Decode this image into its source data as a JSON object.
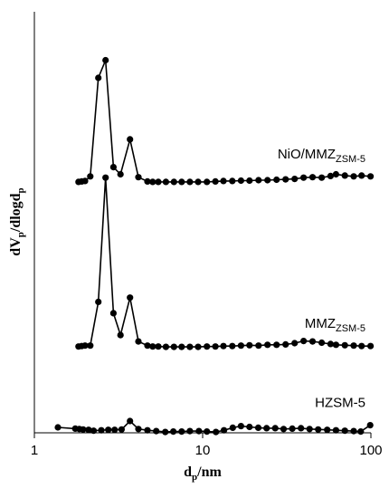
{
  "chart_data": {
    "type": "line",
    "xlabel": {
      "main": "d",
      "sub": "p",
      "rest": "/nm"
    },
    "ylabel": {
      "p1": "dV",
      "s1": "p",
      "p2": "/dlogd",
      "s2": "p"
    },
    "x_scale": "log",
    "xlim": [
      1,
      100
    ],
    "ylim": [
      0,
      1
    ],
    "x_ticks": [
      1,
      10,
      100
    ],
    "x_tick_labels": [
      "1",
      "10",
      "100"
    ],
    "grid": false,
    "legend": "none",
    "series": [
      {
        "label_main": "NiO/MMZ",
        "label_sub": "ZSM-5",
        "points": [
          [
            1.83,
            0.596
          ],
          [
            1.91,
            0.597
          ],
          [
            2.0,
            0.598
          ],
          [
            2.15,
            0.609
          ],
          [
            2.4,
            0.843
          ],
          [
            2.65,
            0.885
          ],
          [
            2.95,
            0.631
          ],
          [
            3.25,
            0.614
          ],
          [
            3.7,
            0.697
          ],
          [
            4.15,
            0.607
          ],
          [
            4.7,
            0.597
          ],
          [
            5.05,
            0.596
          ],
          [
            5.45,
            0.596
          ],
          [
            6.05,
            0.596
          ],
          [
            6.75,
            0.596
          ],
          [
            7.5,
            0.596
          ],
          [
            8.4,
            0.596
          ],
          [
            9.4,
            0.596
          ],
          [
            10.6,
            0.596
          ],
          [
            11.9,
            0.597
          ],
          [
            13.3,
            0.598
          ],
          [
            15.0,
            0.598
          ],
          [
            16.9,
            0.599
          ],
          [
            19.0,
            0.599
          ],
          [
            21.5,
            0.6
          ],
          [
            24.3,
            0.6
          ],
          [
            27.5,
            0.601
          ],
          [
            31.1,
            0.602
          ],
          [
            35.2,
            0.603
          ],
          [
            39.8,
            0.606
          ],
          [
            45.0,
            0.607
          ],
          [
            51.0,
            0.606
          ],
          [
            57.6,
            0.61
          ],
          [
            62.0,
            0.614
          ],
          [
            70.0,
            0.611
          ],
          [
            79.0,
            0.609
          ],
          [
            88.0,
            0.611
          ],
          [
            99.5,
            0.609
          ]
        ]
      },
      {
        "label_main": "MMZ",
        "label_sub": "ZSM-5",
        "points": [
          [
            1.83,
            0.205
          ],
          [
            1.91,
            0.206
          ],
          [
            2.0,
            0.207
          ],
          [
            2.15,
            0.207
          ],
          [
            2.4,
            0.311
          ],
          [
            2.65,
            0.606
          ],
          [
            2.95,
            0.284
          ],
          [
            3.25,
            0.232
          ],
          [
            3.7,
            0.321
          ],
          [
            4.15,
            0.217
          ],
          [
            4.7,
            0.207
          ],
          [
            5.05,
            0.205
          ],
          [
            5.45,
            0.205
          ],
          [
            6.05,
            0.204
          ],
          [
            6.75,
            0.204
          ],
          [
            7.5,
            0.204
          ],
          [
            8.4,
            0.204
          ],
          [
            9.4,
            0.204
          ],
          [
            10.6,
            0.205
          ],
          [
            11.9,
            0.205
          ],
          [
            13.3,
            0.206
          ],
          [
            15.0,
            0.206
          ],
          [
            16.9,
            0.207
          ],
          [
            19.0,
            0.208
          ],
          [
            21.5,
            0.207
          ],
          [
            24.3,
            0.209
          ],
          [
            27.5,
            0.209
          ],
          [
            31.1,
            0.21
          ],
          [
            35.2,
            0.213
          ],
          [
            39.8,
            0.218
          ],
          [
            45.0,
            0.217
          ],
          [
            51.0,
            0.214
          ],
          [
            57.6,
            0.211
          ],
          [
            62.0,
            0.209
          ],
          [
            70.0,
            0.208
          ],
          [
            79.0,
            0.207
          ],
          [
            88.0,
            0.206
          ],
          [
            99.5,
            0.206
          ]
        ]
      },
      {
        "label_main": "HZSM-5",
        "label_sub": "",
        "points": [
          [
            1.38,
            0.013
          ],
          [
            1.75,
            0.01
          ],
          [
            1.85,
            0.009
          ],
          [
            1.95,
            0.008
          ],
          [
            2.1,
            0.007
          ],
          [
            2.25,
            0.005
          ],
          [
            2.5,
            0.006
          ],
          [
            2.75,
            0.007
          ],
          [
            3.0,
            0.007
          ],
          [
            3.3,
            0.008
          ],
          [
            3.7,
            0.028
          ],
          [
            4.15,
            0.009
          ],
          [
            4.7,
            0.006
          ],
          [
            5.3,
            0.004
          ],
          [
            6.0,
            0.002
          ],
          [
            6.7,
            0.003
          ],
          [
            7.5,
            0.003
          ],
          [
            8.4,
            0.004
          ],
          [
            9.5,
            0.004
          ],
          [
            10.6,
            0.003
          ],
          [
            12.0,
            0.002
          ],
          [
            13.4,
            0.006
          ],
          [
            15.1,
            0.012
          ],
          [
            16.9,
            0.016
          ],
          [
            19.0,
            0.014
          ],
          [
            21.4,
            0.012
          ],
          [
            24.0,
            0.011
          ],
          [
            27.0,
            0.011
          ],
          [
            30.3,
            0.009
          ],
          [
            34.1,
            0.01
          ],
          [
            38.4,
            0.011
          ],
          [
            43.2,
            0.009
          ],
          [
            48.6,
            0.008
          ],
          [
            55.0,
            0.007
          ],
          [
            62.0,
            0.006
          ],
          [
            70.0,
            0.005
          ],
          [
            79.0,
            0.004
          ],
          [
            87.0,
            0.003
          ],
          [
            99.0,
            0.018
          ]
        ]
      }
    ]
  }
}
